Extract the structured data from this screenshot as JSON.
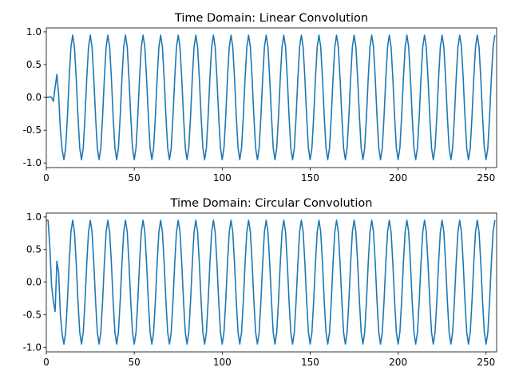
{
  "chart_data": [
    {
      "type": "line",
      "title": "Time Domain: Linear Convolution",
      "color": "#1f77b4",
      "xlim": [
        0,
        256
      ],
      "ylim": [
        -1.07,
        1.06
      ],
      "xticks": [
        0,
        50,
        100,
        150,
        200,
        250
      ],
      "yticks": [
        {
          "value": -1,
          "label": "-1.0"
        },
        {
          "value": -0.5,
          "label": "-0.5"
        },
        {
          "value": 0,
          "label": "0.0"
        },
        {
          "value": 0.5,
          "label": "0.5"
        },
        {
          "value": 1,
          "label": "1.0"
        }
      ],
      "x": [
        0,
        1,
        2,
        3,
        4,
        5,
        6,
        7,
        8,
        9,
        10,
        11,
        12,
        13,
        14,
        15,
        16,
        17,
        18,
        19,
        20,
        21,
        22,
        23,
        24,
        25,
        26,
        27,
        28,
        29,
        30,
        31,
        32,
        33,
        34,
        35,
        36,
        37,
        38,
        39,
        40,
        41,
        42,
        43,
        44,
        45,
        46,
        47,
        48,
        49,
        50,
        51,
        52,
        53,
        54,
        55,
        56,
        57,
        58,
        59,
        60,
        61,
        62,
        63,
        64,
        65,
        66,
        67,
        68,
        69,
        70,
        71,
        72,
        73,
        74,
        75,
        76,
        77,
        78,
        79,
        80,
        81,
        82,
        83,
        84,
        85,
        86,
        87,
        88,
        89,
        90,
        91,
        92,
        93,
        94,
        95,
        96,
        97,
        98,
        99,
        100,
        101,
        102,
        103,
        104,
        105,
        106,
        107,
        108,
        109,
        110,
        111,
        112,
        113,
        114,
        115,
        116,
        117,
        118,
        119,
        120,
        121,
        122,
        123,
        124,
        125,
        126,
        127,
        128,
        129,
        130,
        131,
        132,
        133,
        134,
        135,
        136,
        137,
        138,
        139,
        140,
        141,
        142,
        143,
        144,
        145,
        146,
        147,
        148,
        149,
        150,
        151,
        152,
        153,
        154,
        155,
        156,
        157,
        158,
        159,
        160,
        161,
        162,
        163,
        164,
        165,
        166,
        167,
        168,
        169,
        170,
        171,
        172,
        173,
        174,
        175,
        176,
        177,
        178,
        179,
        180,
        181,
        182,
        183,
        184,
        185,
        186,
        187,
        188,
        189,
        190,
        191,
        192,
        193,
        194,
        195,
        196,
        197,
        198,
        199,
        200,
        201,
        202,
        203,
        204,
        205,
        206,
        207,
        208,
        209,
        210,
        211,
        212,
        213,
        214,
        215,
        216,
        217,
        218,
        219,
        220,
        221,
        222,
        223,
        224,
        225,
        226,
        227,
        228,
        229,
        230,
        231,
        232,
        233,
        234,
        235,
        236,
        237,
        238,
        239,
        240,
        241,
        242,
        243,
        244,
        245,
        246,
        247,
        248,
        249,
        250,
        251,
        252,
        253,
        254,
        255
      ],
      "values": [
        0,
        0,
        0.01,
        0,
        -0.06,
        0.15,
        0.35,
        0.05,
        -0.5,
        -0.8,
        -0.95,
        -0.77,
        -0.29,
        0.29,
        0.77,
        0.95,
        0.77,
        0.29,
        -0.29,
        -0.77,
        -0.95,
        -0.77,
        -0.29,
        0.29,
        0.77,
        0.95,
        0.77,
        0.29,
        -0.29,
        -0.77,
        -0.95,
        -0.77,
        -0.29,
        0.29,
        0.77,
        0.95,
        0.77,
        0.29,
        -0.29,
        -0.77,
        -0.95,
        -0.77,
        -0.29,
        0.29,
        0.77,
        0.95,
        0.77,
        0.29,
        -0.29,
        -0.77,
        -0.95,
        -0.77,
        -0.29,
        0.29,
        0.77,
        0.95,
        0.77,
        0.29,
        -0.29,
        -0.77,
        -0.95,
        -0.77,
        -0.29,
        0.29,
        0.77,
        0.95,
        0.77,
        0.29,
        -0.29,
        -0.77,
        -0.95,
        -0.77,
        -0.29,
        0.29,
        0.77,
        0.95,
        0.77,
        0.29,
        -0.29,
        -0.77,
        -0.95,
        -0.77,
        -0.29,
        0.29,
        0.77,
        0.95,
        0.77,
        0.29,
        -0.29,
        -0.77,
        -0.95,
        -0.77,
        -0.29,
        0.29,
        0.77,
        0.95,
        0.77,
        0.29,
        -0.29,
        -0.77,
        -0.95,
        -0.77,
        -0.29,
        0.29,
        0.77,
        0.95,
        0.77,
        0.29,
        -0.29,
        -0.77,
        -0.95,
        -0.77,
        -0.29,
        0.29,
        0.77,
        0.95,
        0.77,
        0.29,
        -0.29,
        -0.77,
        -0.95,
        -0.77,
        -0.29,
        0.29,
        0.77,
        0.95,
        0.77,
        0.29,
        -0.29,
        -0.77,
        -0.95,
        -0.77,
        -0.29,
        0.29,
        0.77,
        0.95,
        0.77,
        0.29,
        -0.29,
        -0.77,
        -0.95,
        -0.77,
        -0.29,
        0.29,
        0.77,
        0.95,
        0.77,
        0.29,
        -0.29,
        -0.77,
        -0.95,
        -0.77,
        -0.29,
        0.29,
        0.77,
        0.95,
        0.77,
        0.29,
        -0.29,
        -0.77,
        -0.95,
        -0.77,
        -0.29,
        0.29,
        0.77,
        0.95,
        0.77,
        0.29,
        -0.29,
        -0.77,
        -0.95,
        -0.77,
        -0.29,
        0.29,
        0.77,
        0.95,
        0.77,
        0.29,
        -0.29,
        -0.77,
        -0.95,
        -0.77,
        -0.29,
        0.29,
        0.77,
        0.95,
        0.77,
        0.29,
        -0.29,
        -0.77,
        -0.95,
        -0.77,
        -0.29,
        0.29,
        0.77,
        0.95,
        0.77,
        0.29,
        -0.29,
        -0.77,
        -0.95,
        -0.77,
        -0.29,
        0.29,
        0.77,
        0.95,
        0.77,
        0.29,
        -0.29,
        -0.77,
        -0.95,
        -0.77,
        -0.29,
        0.29,
        0.77,
        0.95,
        0.77,
        0.29,
        -0.29,
        -0.77,
        -0.95,
        -0.77,
        -0.29,
        0.29,
        0.77,
        0.95,
        0.77,
        0.29,
        -0.29,
        -0.77,
        -0.95,
        -0.77,
        -0.29,
        0.29,
        0.77,
        0.95,
        0.77,
        0.29,
        -0.29,
        -0.77,
        -0.95,
        -0.77,
        -0.29,
        0.29,
        0.77,
        0.95,
        0.77,
        0.29,
        -0.29,
        -0.77,
        -0.95,
        -0.77,
        -0.29,
        0.29,
        0.77,
        0.95
      ]
    },
    {
      "type": "line",
      "title": "Time Domain: Circular Convolution",
      "color": "#1f77b4",
      "xlim": [
        0,
        256
      ],
      "ylim": [
        -1.07,
        1.06
      ],
      "xticks": [
        0,
        50,
        100,
        150,
        200,
        250
      ],
      "yticks": [
        {
          "value": -1,
          "label": "-1.0"
        },
        {
          "value": -0.5,
          "label": "-0.5"
        },
        {
          "value": 0,
          "label": "0.0"
        },
        {
          "value": 0.5,
          "label": "0.5"
        },
        {
          "value": 1,
          "label": "1.0"
        }
      ],
      "x": [
        0,
        1,
        2,
        3,
        4,
        5,
        6,
        7,
        8,
        9,
        10,
        11,
        12,
        13,
        14,
        15,
        16,
        17,
        18,
        19,
        20,
        21,
        22,
        23,
        24,
        25,
        26,
        27,
        28,
        29,
        30,
        31,
        32,
        33,
        34,
        35,
        36,
        37,
        38,
        39,
        40,
        41,
        42,
        43,
        44,
        45,
        46,
        47,
        48,
        49,
        50,
        51,
        52,
        53,
        54,
        55,
        56,
        57,
        58,
        59,
        60,
        61,
        62,
        63,
        64,
        65,
        66,
        67,
        68,
        69,
        70,
        71,
        72,
        73,
        74,
        75,
        76,
        77,
        78,
        79,
        80,
        81,
        82,
        83,
        84,
        85,
        86,
        87,
        88,
        89,
        90,
        91,
        92,
        93,
        94,
        95,
        96,
        97,
        98,
        99,
        100,
        101,
        102,
        103,
        104,
        105,
        106,
        107,
        108,
        109,
        110,
        111,
        112,
        113,
        114,
        115,
        116,
        117,
        118,
        119,
        120,
        121,
        122,
        123,
        124,
        125,
        126,
        127,
        128,
        129,
        130,
        131,
        132,
        133,
        134,
        135,
        136,
        137,
        138,
        139,
        140,
        141,
        142,
        143,
        144,
        145,
        146,
        147,
        148,
        149,
        150,
        151,
        152,
        153,
        154,
        155,
        156,
        157,
        158,
        159,
        160,
        161,
        162,
        163,
        164,
        165,
        166,
        167,
        168,
        169,
        170,
        171,
        172,
        173,
        174,
        175,
        176,
        177,
        178,
        179,
        180,
        181,
        182,
        183,
        184,
        185,
        186,
        187,
        188,
        189,
        190,
        191,
        192,
        193,
        194,
        195,
        196,
        197,
        198,
        199,
        200,
        201,
        202,
        203,
        204,
        205,
        206,
        207,
        208,
        209,
        210,
        211,
        212,
        213,
        214,
        215,
        216,
        217,
        218,
        219,
        220,
        221,
        222,
        223,
        224,
        225,
        226,
        227,
        228,
        229,
        230,
        231,
        232,
        233,
        234,
        235,
        236,
        237,
        238,
        239,
        240,
        241,
        242,
        243,
        244,
        245,
        246,
        247,
        248,
        249,
        250,
        251,
        252,
        253,
        254,
        255
      ],
      "values": [
        0.95,
        0.95,
        0.55,
        -0.05,
        -0.3,
        -0.45,
        0.32,
        0.15,
        -0.5,
        -0.8,
        -0.95,
        -0.77,
        -0.29,
        0.29,
        0.77,
        0.95,
        0.77,
        0.29,
        -0.29,
        -0.77,
        -0.95,
        -0.77,
        -0.29,
        0.29,
        0.77,
        0.95,
        0.77,
        0.29,
        -0.29,
        -0.77,
        -0.95,
        -0.77,
        -0.29,
        0.29,
        0.77,
        0.95,
        0.77,
        0.29,
        -0.29,
        -0.77,
        -0.95,
        -0.77,
        -0.29,
        0.29,
        0.77,
        0.95,
        0.77,
        0.29,
        -0.29,
        -0.77,
        -0.95,
        -0.77,
        -0.29,
        0.29,
        0.77,
        0.95,
        0.77,
        0.29,
        -0.29,
        -0.77,
        -0.95,
        -0.77,
        -0.29,
        0.29,
        0.77,
        0.95,
        0.77,
        0.29,
        -0.29,
        -0.77,
        -0.95,
        -0.77,
        -0.29,
        0.29,
        0.77,
        0.95,
        0.77,
        0.29,
        -0.29,
        -0.77,
        -0.95,
        -0.77,
        -0.29,
        0.29,
        0.77,
        0.95,
        0.77,
        0.29,
        -0.29,
        -0.77,
        -0.95,
        -0.77,
        -0.29,
        0.29,
        0.77,
        0.95,
        0.77,
        0.29,
        -0.29,
        -0.77,
        -0.95,
        -0.77,
        -0.29,
        0.29,
        0.77,
        0.95,
        0.77,
        0.29,
        -0.29,
        -0.77,
        -0.95,
        -0.77,
        -0.29,
        0.29,
        0.77,
        0.95,
        0.77,
        0.29,
        -0.29,
        -0.77,
        -0.95,
        -0.77,
        -0.29,
        0.29,
        0.77,
        0.95,
        0.77,
        0.29,
        -0.29,
        -0.77,
        -0.95,
        -0.77,
        -0.29,
        0.29,
        0.77,
        0.95,
        0.77,
        0.29,
        -0.29,
        -0.77,
        -0.95,
        -0.77,
        -0.29,
        0.29,
        0.77,
        0.95,
        0.77,
        0.29,
        -0.29,
        -0.77,
        -0.95,
        -0.77,
        -0.29,
        0.29,
        0.77,
        0.95,
        0.77,
        0.29,
        -0.29,
        -0.77,
        -0.95,
        -0.77,
        -0.29,
        0.29,
        0.77,
        0.95,
        0.77,
        0.29,
        -0.29,
        -0.77,
        -0.95,
        -0.77,
        -0.29,
        0.29,
        0.77,
        0.95,
        0.77,
        0.29,
        -0.29,
        -0.77,
        -0.95,
        -0.77,
        -0.29,
        0.29,
        0.77,
        0.95,
        0.77,
        0.29,
        -0.29,
        -0.77,
        -0.95,
        -0.77,
        -0.29,
        0.29,
        0.77,
        0.95,
        0.77,
        0.29,
        -0.29,
        -0.77,
        -0.95,
        -0.77,
        -0.29,
        0.29,
        0.77,
        0.95,
        0.77,
        0.29,
        -0.29,
        -0.77,
        -0.95,
        -0.77,
        -0.29,
        0.29,
        0.77,
        0.95,
        0.77,
        0.29,
        -0.29,
        -0.77,
        -0.95,
        -0.77,
        -0.29,
        0.29,
        0.77,
        0.95,
        0.77,
        0.29,
        -0.29,
        -0.77,
        -0.95,
        -0.77,
        -0.29,
        0.29,
        0.77,
        0.95,
        0.77,
        0.29,
        -0.29,
        -0.77,
        -0.95,
        -0.77,
        -0.29,
        0.29,
        0.77,
        0.95,
        0.77,
        0.29,
        -0.29,
        -0.77,
        -0.95,
        -0.77,
        -0.29,
        0.29,
        0.77,
        0.95
      ]
    }
  ]
}
